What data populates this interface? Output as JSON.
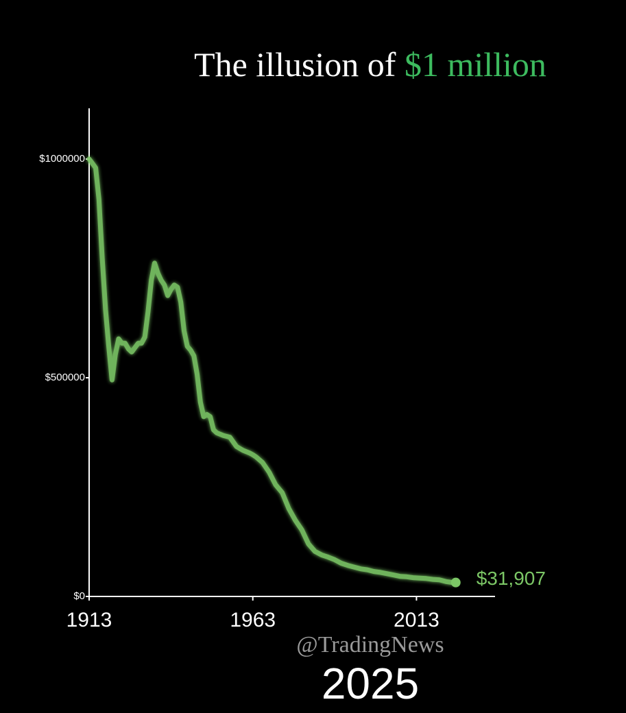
{
  "chart_data": {
    "type": "line",
    "title_parts": [
      {
        "text": "The illusion of ",
        "color": "#ffffff"
      },
      {
        "text": "$1 million",
        "color": "#3dbb5f"
      }
    ],
    "watermark": "@TradingNews",
    "current_year_label": "2025",
    "x": [
      1913,
      1914,
      1915,
      1916,
      1917,
      1918,
      1919,
      1920,
      1921,
      1922,
      1923,
      1924,
      1925,
      1926,
      1927,
      1928,
      1929,
      1930,
      1931,
      1932,
      1933,
      1934,
      1935,
      1936,
      1937,
      1938,
      1939,
      1940,
      1941,
      1942,
      1943,
      1944,
      1945,
      1946,
      1947,
      1948,
      1949,
      1950,
      1951,
      1952,
      1954,
      1956,
      1958,
      1960,
      1962,
      1963,
      1964,
      1966,
      1968,
      1970,
      1972,
      1974,
      1976,
      1978,
      1980,
      1982,
      1984,
      1986,
      1988,
      1990,
      1992,
      1994,
      1996,
      1998,
      2000,
      2002,
      2004,
      2006,
      2008,
      2010,
      2012,
      2014,
      2016,
      2018,
      2020,
      2022,
      2024,
      2025
    ],
    "series": [
      {
        "color": "#7cc766",
        "values": [
          1000000,
          990000,
          980000,
          908000,
          773000,
          656000,
          572000,
          495000,
          553000,
          589000,
          579000,
          579000,
          566000,
          559000,
          569000,
          579000,
          579000,
          593000,
          651000,
          723000,
          762000,
          739000,
          723000,
          712000,
          688000,
          702000,
          712000,
          707000,
          673000,
          607000,
          572000,
          563000,
          550000,
          508000,
          444000,
          411000,
          416000,
          411000,
          381000,
          374000,
          368000,
          364000,
          343000,
          334000,
          328000,
          324000,
          319000,
          306000,
          284000,
          255000,
          237000,
          201000,
          174000,
          152000,
          120000,
          103000,
          95000,
          90000,
          84000,
          76000,
          71000,
          67000,
          63000,
          61000,
          57000,
          55000,
          52000,
          49000,
          46000,
          45000,
          43000,
          42000,
          41000,
          39000,
          38000,
          34000,
          32000,
          31907
        ],
        "value_labels": [
          null,
          null,
          null,
          null,
          null,
          null,
          null,
          null,
          null,
          null,
          null,
          null,
          null,
          null,
          null,
          null,
          null,
          null,
          null,
          null,
          null,
          null,
          null,
          null,
          null,
          null,
          null,
          null,
          null,
          null,
          null,
          null,
          null,
          null,
          null,
          null,
          null,
          null,
          null,
          null,
          null,
          null,
          null,
          null,
          null,
          null,
          null,
          null,
          null,
          null,
          null,
          null,
          null,
          null,
          null,
          null,
          null,
          null,
          null,
          null,
          null,
          null,
          null,
          null,
          null,
          null,
          null,
          null,
          null,
          null,
          null,
          null,
          null,
          null,
          null,
          null,
          null,
          "$31,907"
        ]
      }
    ],
    "xlim": [
      1913,
      2037
    ],
    "xticks": [
      1913,
      1963,
      2013
    ],
    "ylim": [
      0,
      1116000
    ],
    "yticks": [
      {
        "value": 0,
        "label": "$0"
      },
      {
        "value": 500000,
        "label": "$500000"
      },
      {
        "value": 1000000,
        "label": "$1000000"
      }
    ],
    "axis_color": "#ffffff"
  }
}
